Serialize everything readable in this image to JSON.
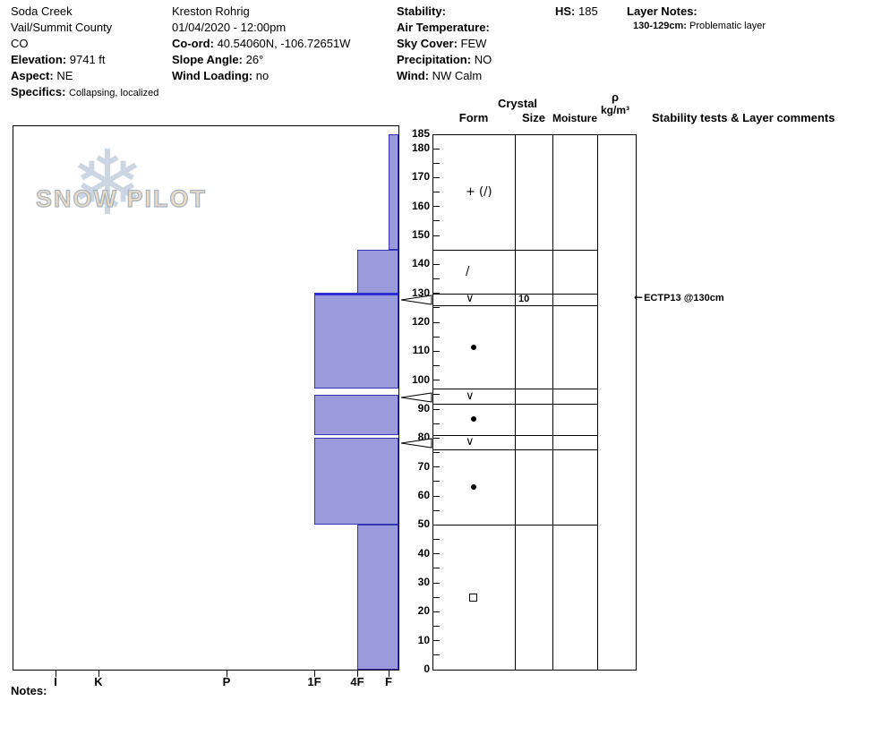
{
  "header": {
    "site": {
      "name": "Soda Creek",
      "region": "Vail/Summit County",
      "state": "CO",
      "elevation_label": "Elevation:",
      "elevation_value": "9741 ft",
      "aspect_label": "Aspect:",
      "aspect_value": "NE",
      "specifics_label": "Specifics:",
      "specifics_value": "Collapsing, localized"
    },
    "observer": {
      "name": "Kreston Rohrig",
      "datetime": "01/04/2020 - 12:00pm",
      "coord_label": "Co-ord:",
      "coord_value": "40.54060N, -106.72651W",
      "slope_angle_label": "Slope Angle:",
      "slope_angle_value": "26°",
      "wind_loading_label": "Wind Loading:",
      "wind_loading_value": "no"
    },
    "conditions": {
      "stability_label": "Stability:",
      "stability_value": "",
      "air_temp_label": "Air Temperature:",
      "air_temp_value": "",
      "sky_cover_label": "Sky Cover:",
      "sky_cover_value": "FEW",
      "precip_label": "Precipitation:",
      "precip_value": "NO",
      "wind_label": "Wind:",
      "wind_value": "NW Calm"
    },
    "hs_label": "HS:",
    "hs_value": "185",
    "layer_notes_label": "Layer Notes:",
    "layer_note_range": "130-129cm:",
    "layer_note_text": "Problematic layer"
  },
  "logo": {
    "snowflake": "❄",
    "text": "SNOW PILOT"
  },
  "column_headers": {
    "crystal": "Crystal",
    "form": "Form",
    "size": "Size",
    "moisture": "Moisture",
    "rho": "ρ",
    "rho_unit": "kg/m³",
    "stability": "Stability tests & Layer comments"
  },
  "depth_axis": {
    "labels": [
      185,
      180,
      170,
      160,
      150,
      140,
      130,
      120,
      110,
      100,
      90,
      80,
      70,
      60,
      50,
      40,
      30,
      20,
      10,
      0
    ]
  },
  "hardness_axis": {
    "labels": [
      "I",
      "K",
      "P",
      "1F",
      "4F",
      "F"
    ]
  },
  "notes_label": "Notes:",
  "colors": {
    "bar_fill": "#9b9ada",
    "bar_border": "#3434b4",
    "problem_line": "#2d2dd0",
    "logo_flake": "#c3cfdd",
    "logo_text_fill": "#e9d9c1"
  },
  "chart_data": {
    "type": "bar",
    "subtype": "snow-pit-hardness-profile",
    "title": "Snow profile: hand hardness vs depth with grain form, size, moisture, density columns",
    "depth_axis_cm": {
      "min": 0,
      "max": 185
    },
    "hardness_scale_left_to_right": [
      "I",
      "K",
      "P",
      "1F",
      "4F",
      "F"
    ],
    "total_height_hs_cm": 185,
    "hardness_profile": [
      {
        "from_cm": 185,
        "to_cm": 145,
        "hardness": "F"
      },
      {
        "from_cm": 145,
        "to_cm": 130,
        "hardness": "4F"
      },
      {
        "from_cm": 130,
        "to_cm": 97,
        "hardness": "1F"
      },
      {
        "from_cm": 95,
        "to_cm": 81,
        "hardness": "1F"
      },
      {
        "from_cm": 80,
        "to_cm": 50,
        "hardness": "1F"
      },
      {
        "from_cm": 50,
        "to_cm": 0,
        "hardness": "4F"
      }
    ],
    "problem_line_cm": 130,
    "layers": [
      {
        "top_cm": 185,
        "bottom_cm": 145,
        "grain_form": "+ (/)"
      },
      {
        "top_cm": 145,
        "bottom_cm": 130,
        "grain_form": "/"
      },
      {
        "top_cm": 130,
        "bottom_cm": 126,
        "grain_form": "∨",
        "size_mm": "10",
        "flagged": true
      },
      {
        "top_cm": 126,
        "bottom_cm": 97,
        "grain_form": "●"
      },
      {
        "top_cm": 97,
        "bottom_cm": 92,
        "grain_form": "∨",
        "flagged": true
      },
      {
        "top_cm": 92,
        "bottom_cm": 81,
        "grain_form": "●"
      },
      {
        "top_cm": 81,
        "bottom_cm": 76,
        "grain_form": "∨",
        "flagged": true
      },
      {
        "top_cm": 76,
        "bottom_cm": 50,
        "grain_form": "●"
      },
      {
        "top_cm": 50,
        "bottom_cm": 0,
        "grain_form": "□"
      }
    ],
    "tests": [
      {
        "label": "ECTP13 @130cm",
        "depth_cm": 130
      }
    ]
  }
}
